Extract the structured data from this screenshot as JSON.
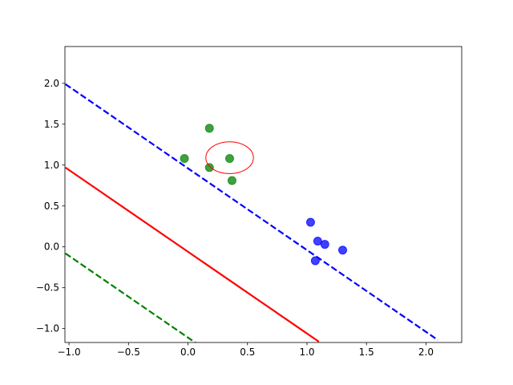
{
  "chart_data": {
    "type": "scatter",
    "xlim": [
      -1.034,
      2.3
    ],
    "ylim": [
      -1.17,
      2.45
    ],
    "xticks": [
      {
        "value": -1.0,
        "label": "−1.0"
      },
      {
        "value": -0.5,
        "label": "−0.5"
      },
      {
        "value": 0.0,
        "label": "0.0"
      },
      {
        "value": 0.5,
        "label": "0.5"
      },
      {
        "value": 1.0,
        "label": "1.0"
      },
      {
        "value": 1.5,
        "label": "1.5"
      },
      {
        "value": 2.0,
        "label": "2.0"
      }
    ],
    "yticks": [
      {
        "value": -1.0,
        "label": "−1.0"
      },
      {
        "value": -0.5,
        "label": "−0.5"
      },
      {
        "value": 0.0,
        "label": "0.0"
      },
      {
        "value": 0.5,
        "label": "0.5"
      },
      {
        "value": 1.0,
        "label": "1.0"
      },
      {
        "value": 1.5,
        "label": "1.5"
      },
      {
        "value": 2.0,
        "label": "2.0"
      }
    ],
    "series": [
      {
        "color": "green",
        "x": [
          -0.03,
          0.18,
          0.18,
          0.35,
          0.37
        ],
        "values": [
          1.08,
          1.45,
          0.97,
          1.08,
          0.81
        ]
      },
      {
        "color": "blue",
        "x": [
          1.03,
          1.09,
          1.15,
          1.07,
          1.3
        ],
        "values": [
          0.3,
          0.07,
          0.03,
          -0.17,
          -0.04
        ]
      }
    ],
    "lines": [
      {
        "color": "blue",
        "style": "dashed",
        "x": [
          -1.03,
          2.1
        ],
        "values": [
          1.99,
          -1.14
        ]
      },
      {
        "color": "red",
        "style": "solid",
        "x": [
          -1.03,
          1.1
        ],
        "values": [
          0.97,
          -1.16
        ]
      },
      {
        "color": "green",
        "style": "dashed",
        "x": [
          -1.03,
          0.08
        ],
        "values": [
          -0.08,
          -1.19
        ]
      }
    ],
    "circle": {
      "color": "red",
      "x": 0.35,
      "y": 1.09,
      "width": 0.4,
      "height": 0.39
    }
  }
}
